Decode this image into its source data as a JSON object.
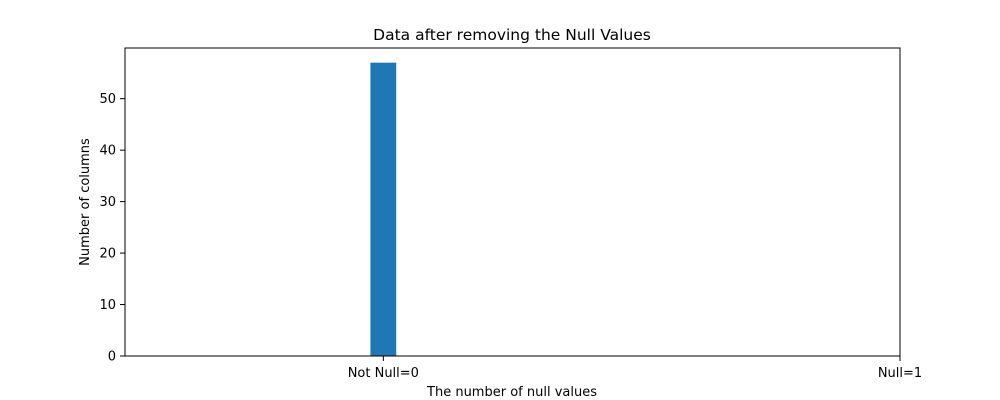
{
  "chart_data": {
    "type": "bar",
    "title": "Data after removing the Null Values",
    "xlabel": "The number of null values",
    "ylabel": "Number of columns",
    "x_ticks": [
      {
        "value": 0,
        "label": "Not Null=0"
      },
      {
        "value": 1,
        "label": "Null=1"
      }
    ],
    "xlim": [
      -0.5,
      1.0
    ],
    "ylim": [
      0,
      59.85
    ],
    "y_ticks": [
      0,
      10,
      20,
      30,
      40,
      50
    ],
    "bars": [
      {
        "x": 0,
        "value": 57
      }
    ],
    "bar_width": 0.05,
    "bar_color": "#1f77b4",
    "grid": false,
    "legend": null
  }
}
